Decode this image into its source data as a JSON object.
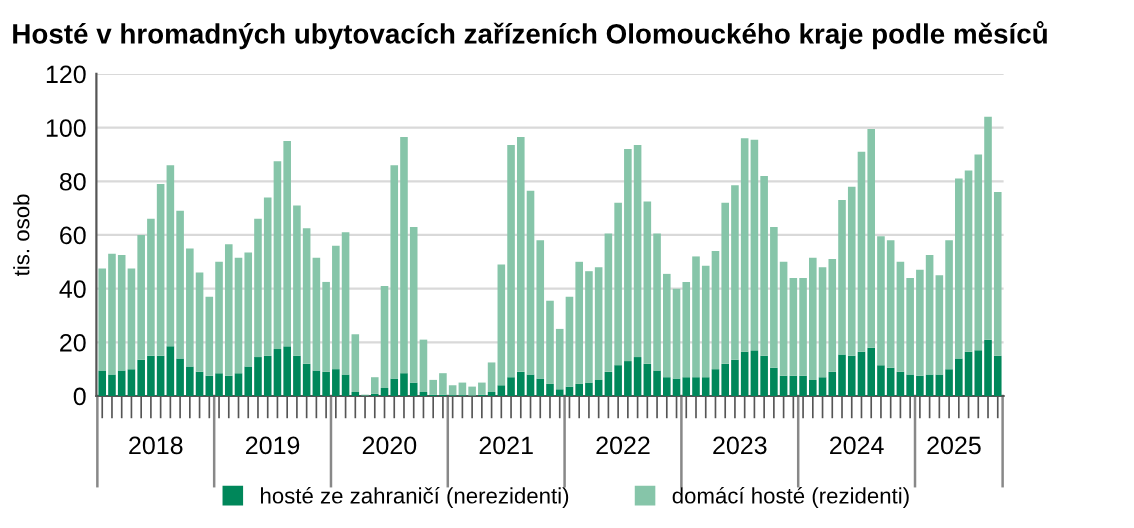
{
  "chart_data": {
    "type": "bar",
    "title": "Hosté v hromadných ubytovacích zařízeních Olomouckého kraje podle měsíců",
    "ylabel": "tis. osob",
    "stacked": true,
    "x": [
      "2018-01",
      "2018-02",
      "2018-03",
      "2018-04",
      "2018-05",
      "2018-06",
      "2018-07",
      "2018-08",
      "2018-09",
      "2018-10",
      "2018-11",
      "2018-12",
      "2019-01",
      "2019-02",
      "2019-03",
      "2019-04",
      "2019-05",
      "2019-06",
      "2019-07",
      "2019-08",
      "2019-09",
      "2019-10",
      "2019-11",
      "2019-12",
      "2020-01",
      "2020-02",
      "2020-03",
      "2020-04",
      "2020-05",
      "2020-06",
      "2020-07",
      "2020-08",
      "2020-09",
      "2020-10",
      "2020-11",
      "2020-12",
      "2021-01",
      "2021-02",
      "2021-03",
      "2021-04",
      "2021-05",
      "2021-06",
      "2021-07",
      "2021-08",
      "2021-09",
      "2021-10",
      "2021-11",
      "2021-12",
      "2022-01",
      "2022-02",
      "2022-03",
      "2022-04",
      "2022-05",
      "2022-06",
      "2022-07",
      "2022-08",
      "2022-09",
      "2022-10",
      "2022-11",
      "2022-12",
      "2023-01",
      "2023-02",
      "2023-03",
      "2023-04",
      "2023-05",
      "2023-06",
      "2023-07",
      "2023-08",
      "2023-09",
      "2023-10",
      "2023-11",
      "2023-12",
      "2024-01",
      "2024-02",
      "2024-03",
      "2024-04",
      "2024-05",
      "2024-06",
      "2024-07",
      "2024-08",
      "2024-09",
      "2024-10",
      "2024-11",
      "2024-12",
      "2025-01",
      "2025-02",
      "2025-03",
      "2025-04",
      "2025-05",
      "2025-06",
      "2025-07",
      "2025-08",
      "2025-09"
    ],
    "xticks": [
      {
        "value": "2018-07",
        "label": "2018"
      },
      {
        "value": "2019-07",
        "label": "2019"
      },
      {
        "value": "2020-07",
        "label": "2020"
      },
      {
        "value": "2021-07",
        "label": "2021"
      },
      {
        "value": "2022-07",
        "label": "2022"
      },
      {
        "value": "2023-07",
        "label": "2023"
      },
      {
        "value": "2024-07",
        "label": "2024"
      },
      {
        "value": "2025-05",
        "label": "2025"
      }
    ],
    "xlim": [
      "2018-01",
      "2025-09"
    ],
    "ylim": [
      0,
      120
    ],
    "yticks": [
      0,
      20,
      40,
      60,
      80,
      100,
      120
    ],
    "grid": "y",
    "legend": "bottom",
    "series": [
      {
        "name": "hosté ze zahraničí (nerezidenti)",
        "color": "#00875a",
        "values": [
          9.5,
          8,
          9.5,
          10,
          13.5,
          15,
          15,
          18.5,
          14,
          11,
          9,
          7.5,
          8.5,
          7.5,
          8.5,
          11,
          14.5,
          15,
          17.5,
          18.5,
          15,
          12,
          9.5,
          9,
          10,
          8,
          1.5,
          0.2,
          0.8,
          3,
          6.5,
          8.5,
          5,
          1.5,
          0.5,
          0.5,
          0.3,
          0.3,
          0.2,
          0.5,
          1.5,
          4,
          7,
          9,
          8,
          6.5,
          4.5,
          2.5,
          3.5,
          4.5,
          5,
          6,
          9,
          11.5,
          13,
          14.5,
          12,
          9.5,
          7,
          6.5,
          7,
          7,
          7,
          10,
          12,
          13.5,
          16.5,
          17,
          15,
          10.5,
          7.5,
          7.5,
          7.5,
          6,
          7,
          9,
          15.5,
          15,
          16.5,
          18,
          11.5,
          10.5,
          9,
          8,
          7.5,
          8,
          8,
          10,
          14,
          16.5,
          17,
          21,
          15
        ]
      },
      {
        "name": "domácí hosté (rezidenti)",
        "color": "#86c5a9",
        "values": [
          38,
          45,
          43,
          37.5,
          46.5,
          51,
          64,
          67.5,
          55,
          44,
          37,
          29.5,
          41.5,
          49,
          43,
          42.5,
          51.5,
          59,
          70,
          76.5,
          56,
          50.5,
          42,
          33.5,
          46,
          53,
          21.5,
          0.3,
          6.2,
          38,
          79.5,
          88,
          58,
          19.5,
          5.5,
          8,
          3.7,
          4.7,
          3.3,
          4.5,
          11,
          45,
          86.5,
          87.5,
          68.5,
          51.5,
          31,
          22.5,
          33.5,
          45.5,
          41.5,
          42,
          51.5,
          60.5,
          79,
          79,
          60.5,
          51,
          38.5,
          33.5,
          35.5,
          45,
          41.5,
          44,
          60,
          65,
          79.5,
          78.5,
          67,
          52.5,
          42.5,
          36.5,
          36.5,
          45.5,
          41,
          42,
          57.5,
          63,
          74.5,
          81.5,
          48,
          47.5,
          41,
          36,
          39.5,
          44.5,
          37,
          48,
          67,
          67.5,
          73,
          83,
          61
        ]
      }
    ]
  }
}
